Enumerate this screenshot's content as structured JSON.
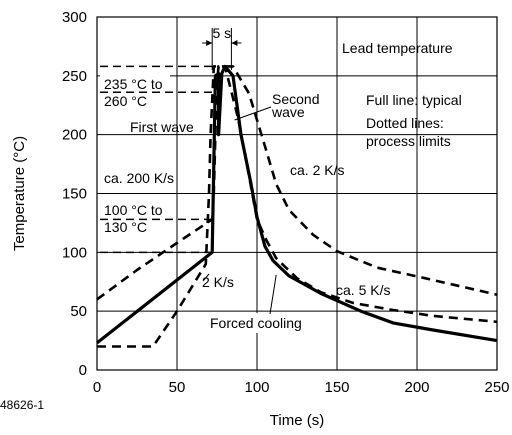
{
  "chart_data": {
    "type": "line",
    "title": "",
    "xlabel": "Time (s)",
    "ylabel": "Temperature (°C)",
    "xlim": [
      0,
      250
    ],
    "ylim": [
      0,
      300
    ],
    "x_ticks": [
      0,
      50,
      100,
      150,
      200,
      250
    ],
    "y_ticks": [
      0,
      50,
      100,
      150,
      200,
      250,
      300
    ],
    "grid": true,
    "figure_id": "48626-1",
    "series": [
      {
        "name": "",
        "style": "solid",
        "points": [
          [
            0,
            23
          ],
          [
            72,
            100
          ],
          [
            74,
            250
          ],
          [
            76,
            252
          ],
          [
            76,
            200
          ],
          [
            78,
            252
          ],
          [
            80,
            258
          ],
          [
            85,
            250
          ],
          [
            90,
            200
          ],
          [
            96,
            160
          ],
          [
            100,
            130
          ],
          [
            105,
            105
          ],
          [
            110,
            93
          ],
          [
            120,
            80
          ],
          [
            140,
            65
          ],
          [
            165,
            50
          ],
          [
            185,
            40
          ],
          [
            210,
            34
          ],
          [
            250,
            25
          ]
        ]
      },
      {
        "name": "",
        "style": "dashed",
        "points": [
          [
            0,
            60
          ],
          [
            25,
            85
          ],
          [
            50,
            108
          ],
          [
            72,
            128
          ],
          [
            73,
            150
          ],
          [
            74,
            200
          ],
          [
            75,
            245
          ],
          [
            76,
            258
          ],
          [
            85,
            258
          ],
          [
            95,
            235
          ],
          [
            105,
            190
          ],
          [
            112,
            158
          ],
          [
            120,
            136
          ],
          [
            135,
            115
          ],
          [
            150,
            101
          ],
          [
            175,
            87
          ],
          [
            205,
            78
          ],
          [
            250,
            64
          ]
        ]
      },
      {
        "name": "",
        "style": "dashed",
        "points": [
          [
            0,
            20
          ],
          [
            35,
            20
          ],
          [
            50,
            50
          ],
          [
            68,
            90
          ],
          [
            70,
            150
          ],
          [
            71,
            200
          ],
          [
            73,
            258
          ],
          [
            80,
            258
          ],
          [
            88,
            215
          ],
          [
            95,
            165
          ],
          [
            100,
            128
          ],
          [
            106,
            110
          ],
          [
            112,
            95
          ],
          [
            125,
            78
          ],
          [
            140,
            66
          ],
          [
            160,
            57
          ],
          [
            185,
            51
          ],
          [
            210,
            46
          ],
          [
            250,
            41
          ]
        ]
      }
    ],
    "annotations": {
      "window_label": "5 s",
      "band_high": "235 °C to\n260 °C",
      "first_wave": "First wave",
      "second_wave": "Second\nwave",
      "band_low": "100 °C to\n130 °C",
      "rate_200": "ca. 200 K/s",
      "rate_2_upper": "ca. 2 K/s",
      "rate_5": "ca. 5 K/s",
      "rate_2_lower": "2 K/s",
      "forced_cooling": "Forced cooling"
    },
    "legend": {
      "title": "Lead temperature",
      "full_line": "Full line: typical",
      "dotted_lines": "Dotted lines:\nprocess limits"
    }
  }
}
